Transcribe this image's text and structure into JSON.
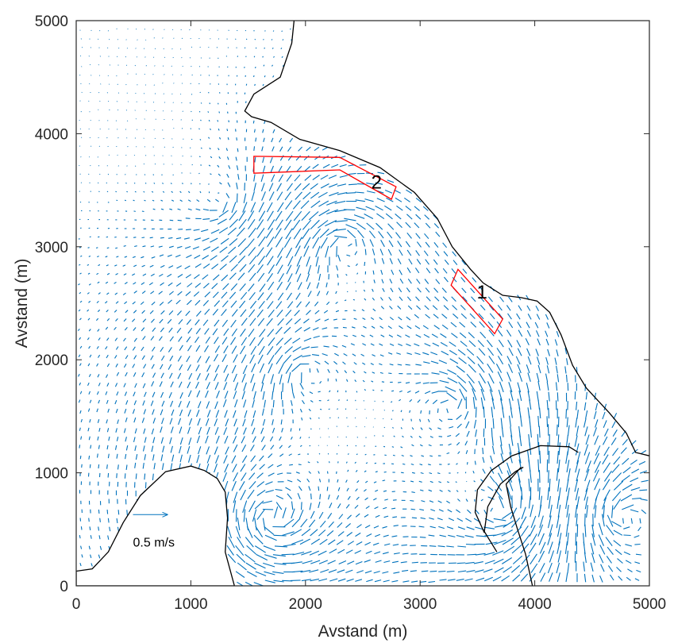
{
  "chart_data": {
    "type": "quiver",
    "xlabel": "Avstand (m)",
    "ylabel": "Avstand (m)",
    "xlim": [
      0,
      5000
    ],
    "ylim": [
      0,
      5000
    ],
    "xticks": [
      0,
      1000,
      2000,
      3000,
      4000,
      5000
    ],
    "yticks": [
      0,
      1000,
      2000,
      3000,
      4000,
      5000
    ],
    "xtick_labels": [
      "0",
      "1000",
      "2000",
      "3000",
      "4000",
      "5000"
    ],
    "ytick_labels": [
      "0",
      "1000",
      "2000",
      "3000",
      "4000",
      "5000"
    ],
    "grid": false,
    "box": true,
    "vector_color": "#0072BD",
    "coastline_color": "#000000",
    "region_color": "#FF0000",
    "reference_vector": {
      "label": "0.5 m/s",
      "speed": 0.5,
      "x": 800,
      "y": 630
    },
    "eddy_centers": [
      {
        "x": 1700,
        "y": 600,
        "strength": 0.22
      },
      {
        "x": 2350,
        "y": 3050,
        "strength": 0.16
      },
      {
        "x": 2000,
        "y": 1900,
        "strength": 0.12
      },
      {
        "x": 3300,
        "y": 1600,
        "strength": 0.14
      },
      {
        "x": 3700,
        "y": 650,
        "strength": 0.2
      },
      {
        "x": 4750,
        "y": 600,
        "strength": -0.18
      },
      {
        "x": 1300,
        "y": 3400,
        "strength": -0.1
      }
    ],
    "coastlines": [
      {
        "name": "north-east-shore",
        "points": [
          [
            1900,
            5000
          ],
          [
            1880,
            4800
          ],
          [
            1780,
            4500
          ],
          [
            1550,
            4350
          ],
          [
            1470,
            4200
          ],
          [
            1530,
            4150
          ],
          [
            1700,
            4100
          ],
          [
            1950,
            3950
          ],
          [
            2300,
            3850
          ],
          [
            2650,
            3700
          ],
          [
            2950,
            3480
          ],
          [
            3150,
            3250
          ],
          [
            3280,
            3000
          ],
          [
            3440,
            2800
          ],
          [
            3550,
            2680
          ],
          [
            3720,
            2570
          ],
          [
            3880,
            2550
          ],
          [
            4020,
            2520
          ],
          [
            4130,
            2420
          ],
          [
            4230,
            2220
          ],
          [
            4330,
            1950
          ],
          [
            4450,
            1750
          ],
          [
            4650,
            1530
          ],
          [
            4800,
            1350
          ],
          [
            4880,
            1180
          ],
          [
            5000,
            1150
          ]
        ]
      },
      {
        "name": "south-west-island",
        "points": [
          [
            0,
            130
          ],
          [
            140,
            150
          ],
          [
            280,
            300
          ],
          [
            410,
            560
          ],
          [
            560,
            800
          ],
          [
            780,
            1010
          ],
          [
            1000,
            1060
          ],
          [
            1120,
            1020
          ],
          [
            1230,
            950
          ],
          [
            1300,
            830
          ],
          [
            1320,
            600
          ],
          [
            1300,
            300
          ],
          [
            1380,
            0
          ],
          [
            0,
            0
          ]
        ]
      },
      {
        "name": "breakwater-outer",
        "points": [
          [
            3560,
            470
          ],
          [
            3480,
            650
          ],
          [
            3500,
            850
          ],
          [
            3620,
            1020
          ],
          [
            3800,
            1150
          ],
          [
            4050,
            1240
          ],
          [
            4300,
            1230
          ],
          [
            4380,
            1180
          ]
        ]
      },
      {
        "name": "breakwater-inner",
        "points": [
          [
            3670,
            300
          ],
          [
            3560,
            480
          ],
          [
            3590,
            700
          ],
          [
            3700,
            900
          ],
          [
            3830,
            1010
          ],
          [
            3900,
            1050
          ]
        ]
      },
      {
        "name": "pier",
        "points": [
          [
            3880,
            1050
          ],
          [
            3750,
            900
          ],
          [
            3790,
            700
          ],
          [
            3850,
            500
          ],
          [
            3920,
            280
          ],
          [
            3980,
            0
          ]
        ]
      }
    ],
    "regions": [
      {
        "label": "1",
        "label_pos": [
          3540,
          2600
        ],
        "points": [
          [
            3330,
            2800
          ],
          [
            3720,
            2360
          ],
          [
            3650,
            2230
          ],
          [
            3270,
            2660
          ]
        ]
      },
      {
        "label": "2",
        "label_pos": [
          2620,
          3570
        ],
        "points": [
          [
            1550,
            3800
          ],
          [
            2300,
            3790
          ],
          [
            2790,
            3530
          ],
          [
            2750,
            3420
          ],
          [
            2300,
            3680
          ],
          [
            1550,
            3650
          ]
        ]
      }
    ]
  }
}
